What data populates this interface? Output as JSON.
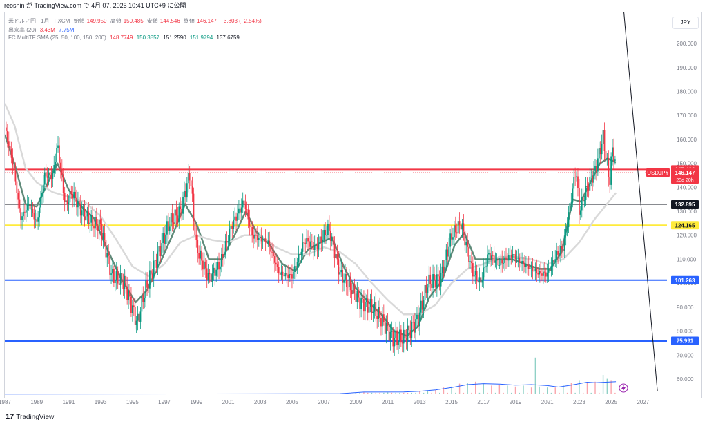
{
  "header": {
    "title": "reoshin が TradingView.com で 4月 07, 2025 10:41 UTC+9 に公開"
  },
  "legend": {
    "symbol": "米ドル／円 · 1月 · FXCM",
    "open_label": "始値",
    "open": "149.950",
    "high_label": "高値",
    "high": "150.485",
    "low_label": "安値",
    "low": "144.546",
    "close_label": "終値",
    "close": "146.147",
    "change": "−3.803 (−2.54%)",
    "volume_label": "出来高 (20)",
    "volume_value": "3.43M",
    "volume_ma": "7.75M",
    "sma_label": "FC MultiTF SMA (25, 50, 100, 150, 200)",
    "sma_values": [
      "148.7749",
      "150.3857",
      "151.2590",
      "151.9794",
      "137.6759"
    ]
  },
  "currency_button": "JPY",
  "footer": {
    "logo": "17",
    "brand": "TradingView"
  },
  "colors": {
    "up": "#089981",
    "down": "#f23645",
    "sma_fast": "#5f8a79",
    "sma_slow": "#d9d9d9",
    "yellow": "#ffeb3b",
    "blue_line": "#2962ff",
    "red_line": "#f23645",
    "black_line": "#131722",
    "volume_ma": "#2962ff"
  },
  "chart_data": {
    "type": "candlestick",
    "title": "",
    "xlabel": "",
    "ylabel": "",
    "ylim": [
      52.5,
      213
    ],
    "xlim": [
      1987,
      2028.5
    ],
    "y_ticks": [
      "200.000",
      "190.000",
      "180.000",
      "170.000",
      "160.000",
      "150.000",
      "140.000",
      "130.000",
      "120.000",
      "110.000",
      "100.000",
      "90.000",
      "80.000",
      "70.000",
      "60.000"
    ],
    "x_ticks": [
      "1987",
      "1989",
      "1991",
      "1993",
      "1995",
      "1997",
      "1999",
      "2001",
      "2003",
      "2005",
      "2007",
      "2009",
      "2011",
      "2013",
      "2015",
      "2017",
      "2019",
      "2021",
      "2023",
      "2025",
      "2027"
    ],
    "price_path": [
      [
        1987.0,
        165
      ],
      [
        1987.5,
        150
      ],
      [
        1988.0,
        127
      ],
      [
        1988.5,
        133
      ],
      [
        1989.0,
        125
      ],
      [
        1989.5,
        145
      ],
      [
        1990.0,
        145
      ],
      [
        1990.3,
        158
      ],
      [
        1990.8,
        132
      ],
      [
        1991.2,
        138
      ],
      [
        1991.8,
        130
      ],
      [
        1992.5,
        125
      ],
      [
        1993.0,
        124
      ],
      [
        1993.7,
        103
      ],
      [
        1994.5,
        100
      ],
      [
        1995.3,
        83
      ],
      [
        1995.7,
        95
      ],
      [
        1996.5,
        110
      ],
      [
        1997.3,
        125
      ],
      [
        1998.0,
        130
      ],
      [
        1998.6,
        146
      ],
      [
        1999.0,
        115
      ],
      [
        1999.8,
        102
      ],
      [
        2000.5,
        108
      ],
      [
        2001.2,
        124
      ],
      [
        2002.0,
        134
      ],
      [
        2002.5,
        120
      ],
      [
        2003.5,
        117
      ],
      [
        2004.2,
        104
      ],
      [
        2005.0,
        103
      ],
      [
        2005.8,
        118
      ],
      [
        2006.5,
        115
      ],
      [
        2007.3,
        123
      ],
      [
        2008.0,
        104
      ],
      [
        2008.7,
        98
      ],
      [
        2009.3,
        92
      ],
      [
        2010.0,
        90
      ],
      [
        2010.5,
        86
      ],
      [
        2011.3,
        77
      ],
      [
        2012.0,
        77
      ],
      [
        2012.9,
        85
      ],
      [
        2013.5,
        100
      ],
      [
        2014.3,
        102
      ],
      [
        2015.0,
        120
      ],
      [
        2015.6,
        125
      ],
      [
        2016.3,
        105
      ],
      [
        2016.8,
        100
      ],
      [
        2017.3,
        112
      ],
      [
        2018.0,
        108
      ],
      [
        2018.8,
        112
      ],
      [
        2019.5,
        108
      ],
      [
        2020.5,
        104
      ],
      [
        2021.0,
        104
      ],
      [
        2021.6,
        112
      ],
      [
        2022.0,
        115
      ],
      [
        2022.8,
        148
      ],
      [
        2023.0,
        130
      ],
      [
        2023.5,
        140
      ],
      [
        2024.0,
        147
      ],
      [
        2024.5,
        161
      ],
      [
        2024.9,
        142
      ],
      [
        2025.1,
        158
      ],
      [
        2025.3,
        146.147
      ]
    ],
    "series": [
      {
        "name": "SMA fast",
        "color": "#5f8a79",
        "values": [
          [
            1987.0,
            162
          ],
          [
            1987.6,
            150
          ],
          [
            1988.3,
            133
          ],
          [
            1989.0,
            132
          ],
          [
            1989.7,
            142
          ],
          [
            1990.3,
            150
          ],
          [
            1991.0,
            139
          ],
          [
            1991.8,
            132
          ],
          [
            1992.6,
            127
          ],
          [
            1993.3,
            116
          ],
          [
            1994.2,
            103
          ],
          [
            1995.2,
            92
          ],
          [
            1995.9,
            97
          ],
          [
            1996.7,
            108
          ],
          [
            1997.5,
            120
          ],
          [
            1998.3,
            133
          ],
          [
            1999.0,
            125
          ],
          [
            1999.8,
            110
          ],
          [
            2000.6,
            110
          ],
          [
            2001.4,
            120
          ],
          [
            2002.1,
            130
          ],
          [
            2002.8,
            121
          ],
          [
            2003.6,
            116
          ],
          [
            2004.4,
            108
          ],
          [
            2005.2,
            105
          ],
          [
            2006.0,
            114
          ],
          [
            2006.8,
            117
          ],
          [
            2007.5,
            119
          ],
          [
            2008.3,
            106
          ],
          [
            2009.0,
            98
          ],
          [
            2009.8,
            92
          ],
          [
            2010.6,
            87
          ],
          [
            2011.4,
            80
          ],
          [
            2012.2,
            78
          ],
          [
            2012.9,
            82
          ],
          [
            2013.6,
            94
          ],
          [
            2014.4,
            101
          ],
          [
            2015.2,
            116
          ],
          [
            2015.8,
            121
          ],
          [
            2016.5,
            110
          ],
          [
            2017.2,
            110
          ],
          [
            2018.0,
            110
          ],
          [
            2018.8,
            110
          ],
          [
            2019.6,
            108
          ],
          [
            2020.5,
            106
          ],
          [
            2021.2,
            106
          ],
          [
            2021.9,
            113
          ],
          [
            2022.6,
            135
          ],
          [
            2023.1,
            134
          ],
          [
            2023.7,
            142
          ],
          [
            2024.3,
            150
          ],
          [
            2024.8,
            152
          ],
          [
            2025.3,
            150.39
          ]
        ]
      },
      {
        "name": "SMA slow",
        "color": "#d9d9d9",
        "values": [
          [
            1987.0,
            175
          ],
          [
            1987.6,
            166
          ],
          [
            1988.3,
            148
          ],
          [
            1989.0,
            142
          ],
          [
            1990.0,
            138
          ],
          [
            1991.0,
            136
          ],
          [
            1992.0,
            134
          ],
          [
            1993.0,
            128
          ],
          [
            1994.0,
            118
          ],
          [
            1995.0,
            107
          ],
          [
            1996.0,
            103
          ],
          [
            1997.0,
            108
          ],
          [
            1998.0,
            117
          ],
          [
            1999.0,
            120
          ],
          [
            2000.0,
            118
          ],
          [
            2001.0,
            117
          ],
          [
            2002.0,
            120
          ],
          [
            2003.0,
            120
          ],
          [
            2004.0,
            115
          ],
          [
            2005.0,
            112
          ],
          [
            2006.0,
            112
          ],
          [
            2007.0,
            115
          ],
          [
            2008.0,
            113
          ],
          [
            2009.0,
            108
          ],
          [
            2010.0,
            100
          ],
          [
            2011.0,
            93
          ],
          [
            2012.0,
            87
          ],
          [
            2013.0,
            87
          ],
          [
            2014.0,
            91
          ],
          [
            2015.0,
            100
          ],
          [
            2016.0,
            106
          ],
          [
            2017.0,
            108
          ],
          [
            2018.0,
            111
          ],
          [
            2019.0,
            111
          ],
          [
            2020.0,
            110
          ],
          [
            2021.0,
            108
          ],
          [
            2022.0,
            110
          ],
          [
            2023.0,
            117
          ],
          [
            2024.0,
            127
          ],
          [
            2025.3,
            137.68
          ]
        ]
      }
    ],
    "volume_bars": [
      [
        2009.5,
        2
      ],
      [
        2011.0,
        1.8
      ],
      [
        2013.0,
        3
      ],
      [
        2013.5,
        4
      ],
      [
        2014.0,
        4.5
      ],
      [
        2014.5,
        7
      ],
      [
        2015.0,
        8
      ],
      [
        2015.5,
        11
      ],
      [
        2016.0,
        12
      ],
      [
        2016.5,
        13
      ],
      [
        2017.0,
        11
      ],
      [
        2017.5,
        9
      ],
      [
        2018.0,
        10
      ],
      [
        2018.5,
        9
      ],
      [
        2019.0,
        8
      ],
      [
        2019.5,
        9
      ],
      [
        2020.0,
        7
      ],
      [
        2020.3,
        38
      ],
      [
        2020.6,
        8
      ],
      [
        2021.0,
        7
      ],
      [
        2021.5,
        7
      ],
      [
        2022.0,
        9
      ],
      [
        2022.5,
        12
      ],
      [
        2023.0,
        14
      ],
      [
        2023.5,
        12
      ],
      [
        2024.0,
        13
      ],
      [
        2024.5,
        20
      ],
      [
        2024.8,
        16
      ],
      [
        2025.1,
        14
      ]
    ],
    "volume_ma": [
      [
        1987.0,
        0.2
      ],
      [
        2000.0,
        0.4
      ],
      [
        2008.0,
        0.6
      ],
      [
        2009.5,
        2.2
      ],
      [
        2012.0,
        2.3
      ],
      [
        2013.0,
        3
      ],
      [
        2014.0,
        4.5
      ],
      [
        2015.0,
        7
      ],
      [
        2016.0,
        10
      ],
      [
        2017.0,
        11
      ],
      [
        2018.0,
        10.5
      ],
      [
        2019.0,
        9.5
      ],
      [
        2020.0,
        10
      ],
      [
        2021.0,
        9
      ],
      [
        2021.7,
        7.5
      ],
      [
        2022.5,
        9.5
      ],
      [
        2023.0,
        11
      ],
      [
        2023.5,
        12.5
      ],
      [
        2024.0,
        12
      ],
      [
        2025.3,
        13
      ]
    ],
    "volume_max": 40,
    "horizontal_lines": [
      {
        "price": 147.493,
        "label": "147.493",
        "color": "#f23645",
        "width": 2
      },
      {
        "price": 132.895,
        "label": "132.895",
        "color": "#131722",
        "width": 1
      },
      {
        "price": 124.165,
        "label": "124.165",
        "color": "#ffeb3b",
        "width": 2
      },
      {
        "price": 101.263,
        "label": "101.263",
        "color": "#2962ff",
        "width": 2
      },
      {
        "price": 75.991,
        "label": "75.991",
        "color": "#2962ff",
        "width": 3
      }
    ],
    "trend_line": [
      [
        2025.6,
        228
      ],
      [
        2027.9,
        55
      ]
    ],
    "current_price": {
      "symbol": "USDJPY",
      "price": "146.147",
      "countdown": "23d 20h"
    },
    "grid": false,
    "legend_position": "top-left"
  }
}
